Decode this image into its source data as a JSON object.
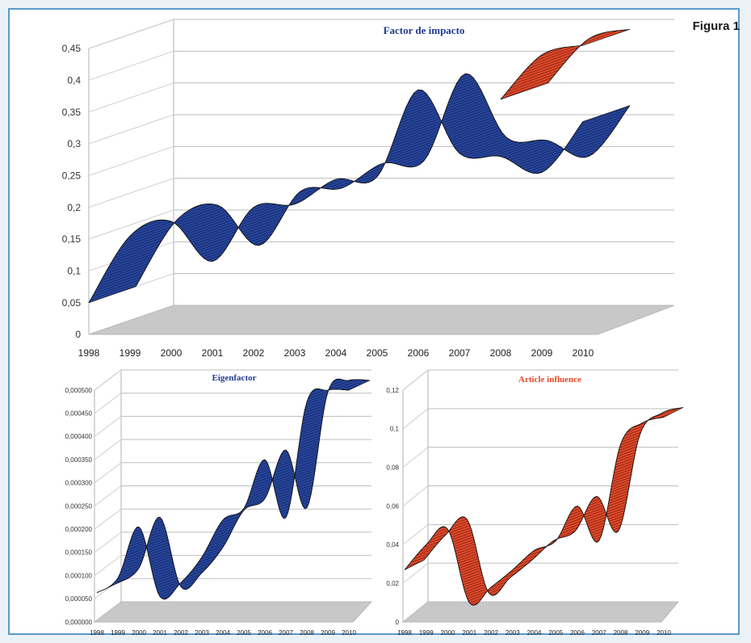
{
  "figure_label": "Figura 1",
  "chart_data": [
    {
      "type": "line",
      "style": "3d-ribbon",
      "title": "Factor de impacto",
      "title_color": "#1f3a93",
      "categories": [
        "1998",
        "1999",
        "2000",
        "2001",
        "2002",
        "2003",
        "2004",
        "2005",
        "2006",
        "2007",
        "2008",
        "2009",
        "2010"
      ],
      "yticks": [
        "0",
        "0,05",
        "0,1",
        "0,15",
        "0,2",
        "0,25",
        "0,3",
        "0,35",
        "0,4",
        "0,45"
      ],
      "ylim": [
        0,
        0.45
      ],
      "grid": true,
      "series": [
        {
          "values": [
            0.05,
            0.155,
            0.178,
            0.115,
            0.2,
            0.205,
            0.244,
            0.248,
            0.385,
            0.285,
            0.28,
            0.255,
            0.335
          ],
          "color": "#1f3a93"
        },
        {
          "values": [
            null,
            null,
            null,
            null,
            null,
            null,
            null,
            null,
            null,
            null,
            0.37,
            0.44,
            0.455
          ],
          "color": "#e04a2a"
        }
      ]
    },
    {
      "type": "line",
      "style": "3d-ribbon",
      "title": "Eigenfactor",
      "title_color": "#1f3a93",
      "categories": [
        "1998",
        "1999",
        "2000",
        "2001",
        "2002",
        "2003",
        "2004",
        "2005",
        "2006",
        "2007",
        "2008",
        "2009",
        "2010"
      ],
      "yticks": [
        "0,000000",
        "0,000050",
        "0,000100",
        "0,000150",
        "0,000200",
        "0,000250",
        "0,000300",
        "0,000350",
        "0,000400",
        "0,000450",
        "0,000500"
      ],
      "ylim": [
        0,
        0.0005
      ],
      "grid": true,
      "series": [
        {
          "values": [
            6.3e-05,
            9.5e-05,
            0.000205,
            5.5e-05,
            8.5e-05,
            0.00014,
            0.00022,
            0.000245,
            0.00035,
            0.000225,
            0.000475,
            0.0005,
            0.0005
          ],
          "color": "#1f3a93"
        }
      ]
    },
    {
      "type": "line",
      "style": "3d-ribbon",
      "title": "Article influence",
      "title_color": "#e04a2a",
      "categories": [
        "1998",
        "1999",
        "2000",
        "2001",
        "2002",
        "2003",
        "2004",
        "2005",
        "2006",
        "2007",
        "2008",
        "2009",
        "2010"
      ],
      "yticks": [
        "0",
        "0,02",
        "0,04",
        "0,06",
        "0,08",
        "0,1",
        "0,12"
      ],
      "ylim": [
        0,
        0.12
      ],
      "grid": true,
      "series": [
        {
          "values": [
            0.027,
            0.04,
            0.048,
            0.01,
            0.018,
            0.027,
            0.037,
            0.042,
            0.06,
            0.042,
            0.092,
            0.103,
            0.106
          ],
          "color": "#e04a2a"
        }
      ]
    }
  ]
}
